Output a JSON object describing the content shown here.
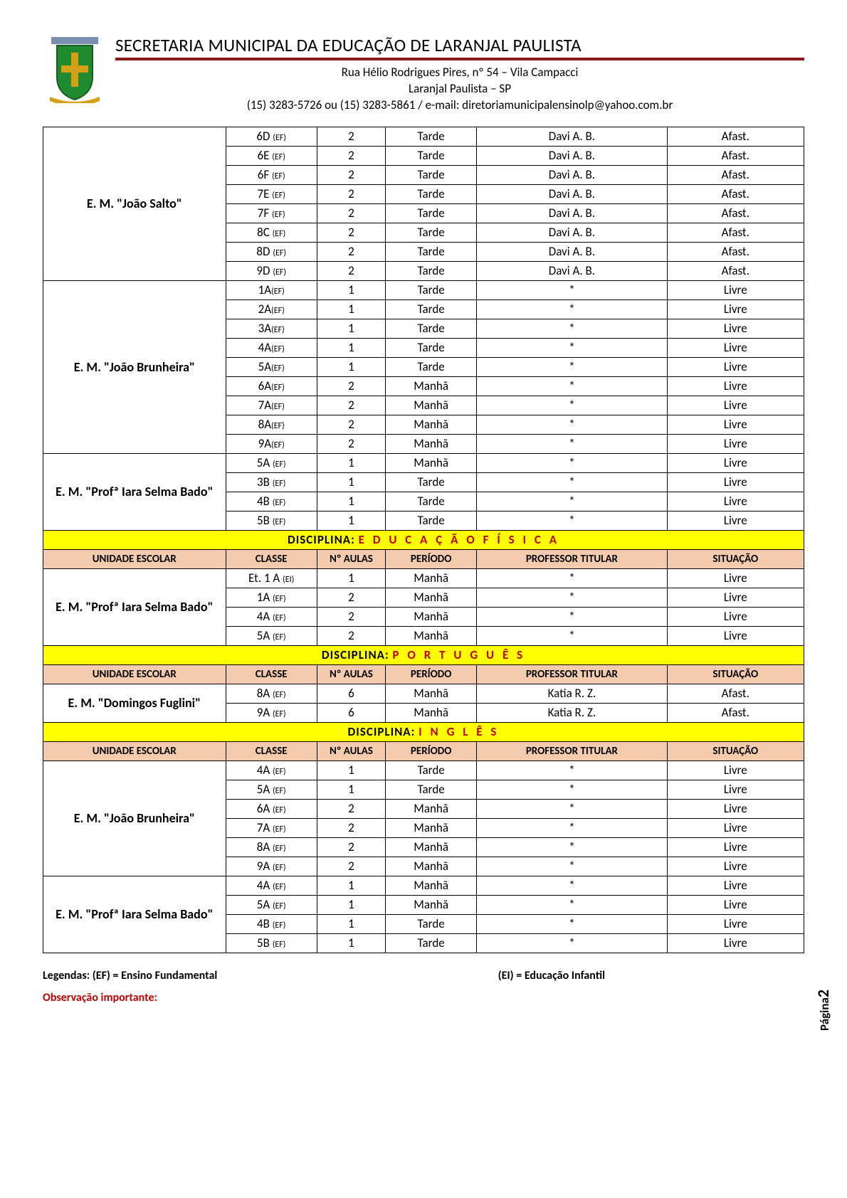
{
  "header": {
    "title": "SECRETARIA MUNICIPAL DA EDUCAÇÃO DE LARANJAL PAULISTA",
    "address1": "Rua Hélio Rodrigues Pires, nº 54 – Vila Campacci",
    "address2": "Laranjal Paulista – SP",
    "contact": "(15) 3283-5726 ou (15) 3283-5861 / e-mail: diretoriamunicipalensinolp@yahoo.com.br"
  },
  "columns": {
    "unidade": "UNIDADE ESCOLAR",
    "classe": "CLASSE",
    "aulas": "Nº AULAS",
    "periodo": "PERÍODO",
    "professor": "PROFESSOR TITULAR",
    "situacao": "SITUAÇÃO"
  },
  "col_widths": [
    "24%",
    "12%",
    "9%",
    "12%",
    "25%",
    "18%"
  ],
  "sections": [
    {
      "type": "group",
      "school": "E. M. \"João Salto\"",
      "rows": [
        {
          "classe": "6D",
          "sub": "(EF)",
          "aulas": "2",
          "periodo": "Tarde",
          "prof": "Davi A. B.",
          "sit": "Afast."
        },
        {
          "classe": "6E",
          "sub": "(EF)",
          "aulas": "2",
          "periodo": "Tarde",
          "prof": "Davi A. B.",
          "sit": "Afast."
        },
        {
          "classe": "6F",
          "sub": "(EF)",
          "aulas": "2",
          "periodo": "Tarde",
          "prof": "Davi A. B.",
          "sit": "Afast."
        },
        {
          "classe": "7E",
          "sub": "(EF)",
          "aulas": "2",
          "periodo": "Tarde",
          "prof": "Davi A. B.",
          "sit": "Afast."
        },
        {
          "classe": "7F",
          "sub": "(EF)",
          "aulas": "2",
          "periodo": "Tarde",
          "prof": "Davi A. B.",
          "sit": "Afast."
        },
        {
          "classe": "8C",
          "sub": "(EF)",
          "aulas": "2",
          "periodo": "Tarde",
          "prof": "Davi A. B.",
          "sit": "Afast."
        },
        {
          "classe": "8D",
          "sub": "(EF)",
          "aulas": "2",
          "periodo": "Tarde",
          "prof": "Davi A. B.",
          "sit": "Afast."
        },
        {
          "classe": "9D",
          "sub": "(EF)",
          "aulas": "2",
          "periodo": "Tarde",
          "prof": "Davi A. B.",
          "sit": "Afast."
        }
      ]
    },
    {
      "type": "group",
      "school": "E. M. \"João Brunheira\"",
      "rows": [
        {
          "classe": "1A",
          "sub": "(EF)",
          "tight": true,
          "aulas": "1",
          "periodo": "Tarde",
          "prof": "*",
          "sit": "Livre"
        },
        {
          "classe": "2A",
          "sub": "(EF)",
          "tight": true,
          "aulas": "1",
          "periodo": "Tarde",
          "prof": "*",
          "sit": "Livre"
        },
        {
          "classe": "3A",
          "sub": "(EF)",
          "tight": true,
          "aulas": "1",
          "periodo": "Tarde",
          "prof": "*",
          "sit": "Livre"
        },
        {
          "classe": "4A",
          "sub": "(EF)",
          "tight": true,
          "aulas": "1",
          "periodo": "Tarde",
          "prof": "*",
          "sit": "Livre"
        },
        {
          "classe": "5A",
          "sub": "(EF)",
          "tight": true,
          "aulas": "1",
          "periodo": "Tarde",
          "prof": "*",
          "sit": "Livre"
        },
        {
          "classe": "6A",
          "sub": "(EF)",
          "tight": true,
          "aulas": "2",
          "periodo": "Manhã",
          "prof": "*",
          "sit": "Livre"
        },
        {
          "classe": "7A",
          "sub": "(EF)",
          "tight": true,
          "aulas": "2",
          "periodo": "Manhã",
          "prof": "*",
          "sit": "Livre"
        },
        {
          "classe": "8A",
          "sub": "(EF)",
          "tight": true,
          "aulas": "2",
          "periodo": "Manhã",
          "prof": "*",
          "sit": "Livre"
        },
        {
          "classe": "9A",
          "sub": "(EF)",
          "tight": true,
          "aulas": "2",
          "periodo": "Manhã",
          "prof": "*",
          "sit": "Livre"
        }
      ]
    },
    {
      "type": "group",
      "school": "E. M. \"Profª Iara Selma Bado\"",
      "rows": [
        {
          "classe": "5A",
          "sub": "(EF)",
          "aulas": "1",
          "periodo": "Manhã",
          "prof": "*",
          "sit": "Livre"
        },
        {
          "classe": "3B",
          "sub": "(EF)",
          "aulas": "1",
          "periodo": "Tarde",
          "prof": "*",
          "sit": "Livre"
        },
        {
          "classe": "4B",
          "sub": "(EF)",
          "aulas": "1",
          "periodo": "Tarde",
          "prof": "*",
          "sit": "Livre"
        },
        {
          "classe": "5B",
          "sub": "(EF)",
          "aulas": "1",
          "periodo": "Tarde",
          "prof": "*",
          "sit": "Livre"
        }
      ]
    },
    {
      "type": "discipline",
      "label": "DISCIPLINA:",
      "name": "E D U C A Ç Ã O     F Í S I C A"
    },
    {
      "type": "header"
    },
    {
      "type": "group",
      "school": "E. M. \"Profª Iara Selma Bado\"",
      "rows": [
        {
          "classe": "Et. 1 A",
          "sub": "(EI)",
          "aulas": "1",
          "periodo": "Manhã",
          "prof": "*",
          "sit": "Livre"
        },
        {
          "classe": "1A",
          "sub": "(EF)",
          "aulas": "2",
          "periodo": "Manhã",
          "prof": "*",
          "sit": "Livre"
        },
        {
          "classe": "4A",
          "sub": "(EF)",
          "aulas": "2",
          "periodo": "Manhã",
          "prof": "*",
          "sit": "Livre"
        },
        {
          "classe": "5A",
          "sub": "(EF)",
          "aulas": "2",
          "periodo": "Manhã",
          "prof": "*",
          "sit": "Livre"
        }
      ]
    },
    {
      "type": "discipline",
      "label": "DISCIPLINA:",
      "name": "P O R T U G U Ê S"
    },
    {
      "type": "header"
    },
    {
      "type": "group",
      "school": "E. M. \"Domingos Fuglini\"",
      "rows": [
        {
          "classe": "8A",
          "sub": "(EF)",
          "aulas": "6",
          "periodo": "Manhã",
          "prof": "Katia R. Z.",
          "sit": "Afast."
        },
        {
          "classe": "9A",
          "sub": "(EF)",
          "aulas": "6",
          "periodo": "Manhã",
          "prof": "Katia R. Z.",
          "sit": "Afast."
        }
      ]
    },
    {
      "type": "discipline",
      "label": "DISCIPLINA:",
      "name": "I N G L Ê S"
    },
    {
      "type": "header"
    },
    {
      "type": "group",
      "school": "E. M. \"João Brunheira\"",
      "rows": [
        {
          "classe": "4A",
          "sub": "(EF)",
          "aulas": "1",
          "periodo": "Tarde",
          "prof": "*",
          "sit": "Livre"
        },
        {
          "classe": "5A",
          "sub": "(EF)",
          "aulas": "1",
          "periodo": "Tarde",
          "prof": "*",
          "sit": "Livre"
        },
        {
          "classe": "6A",
          "sub": "(EF)",
          "aulas": "2",
          "periodo": "Manhã",
          "prof": "*",
          "sit": "Livre"
        },
        {
          "classe": "7A",
          "sub": "(EF)",
          "aulas": "2",
          "periodo": "Manhã",
          "prof": "*",
          "sit": "Livre"
        },
        {
          "classe": "8A",
          "sub": "(EF)",
          "aulas": "2",
          "periodo": "Manhã",
          "prof": "*",
          "sit": "Livre"
        },
        {
          "classe": "9A",
          "sub": "(EF)",
          "aulas": "2",
          "periodo": "Manhã",
          "prof": "*",
          "sit": "Livre"
        }
      ]
    },
    {
      "type": "group",
      "school": "E. M. \"Profª Iara Selma Bado\"",
      "rows": [
        {
          "classe": "4A",
          "sub": "(EF)",
          "aulas": "1",
          "periodo": "Manhã",
          "prof": "*",
          "sit": "Livre"
        },
        {
          "classe": "5A",
          "sub": "(EF)",
          "aulas": "1",
          "periodo": "Manhã",
          "prof": "*",
          "sit": "Livre"
        },
        {
          "classe": "4B",
          "sub": "(EF)",
          "aulas": "1",
          "periodo": "Tarde",
          "prof": "*",
          "sit": "Livre"
        },
        {
          "classe": "5B",
          "sub": "(EF)",
          "aulas": "1",
          "periodo": "Tarde",
          "prof": "*",
          "sit": "Livre"
        }
      ]
    }
  ],
  "footer": {
    "legend1": "Legendas: (EF) = Ensino Fundamental",
    "legend2": "(EI) = Educação Infantil",
    "obs": "Observação importante:",
    "page_label": "Página",
    "page_num": "2"
  },
  "colors": {
    "discipline_bg": "#ffff00",
    "discipline_text": "#c00000",
    "header_row_bg": "#f4cbac",
    "border": "#000000",
    "red_bar": "#8b1a1a"
  }
}
